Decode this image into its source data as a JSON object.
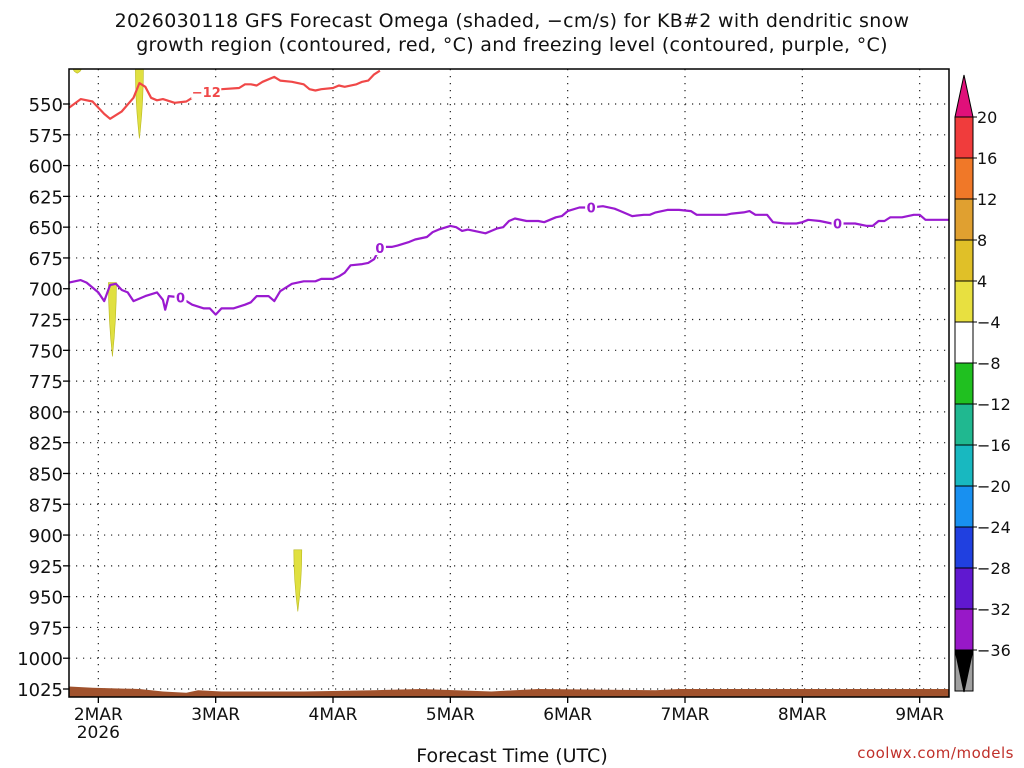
{
  "chart_data": {
    "type": "heatmap",
    "title_line1": "2026030118 GFS Forecast Omega (shaded, −cm/s) for KB#2 with dendritic snow",
    "title_line2": "growth region (contoured, red, °C) and freezing level (contoured, purple, °C)",
    "xlabel": "Forecast Time (UTC)",
    "credit": "coolwx.com/models",
    "x_range_days": [
      0,
      7.5
    ],
    "x_ticks": [
      {
        "day": 0.25,
        "label": "2MAR",
        "sub": "2026"
      },
      {
        "day": 1.25,
        "label": "3MAR"
      },
      {
        "day": 2.25,
        "label": "4MAR"
      },
      {
        "day": 3.25,
        "label": "5MAR"
      },
      {
        "day": 4.25,
        "label": "6MAR"
      },
      {
        "day": 5.25,
        "label": "7MAR"
      },
      {
        "day": 6.25,
        "label": "8MAR"
      },
      {
        "day": 7.25,
        "label": "9MAR"
      }
    ],
    "y_range_hpa": [
      520,
      1030
    ],
    "y_ticks": [
      550,
      575,
      600,
      625,
      650,
      675,
      700,
      725,
      750,
      775,
      800,
      825,
      850,
      875,
      900,
      925,
      950,
      975,
      1000,
      1025
    ],
    "colorbar": {
      "labels": [
        "20",
        "16",
        "12",
        "8",
        "4",
        "−4",
        "−8",
        "−12",
        "−16",
        "−20",
        "−24",
        "−28",
        "−32",
        "−36"
      ],
      "top_arrow_color": "#e0107a",
      "bottom_arrow_color": "#000000",
      "colors": [
        "#f03c3c",
        "#f07828",
        "#e0a030",
        "#e0c028",
        "#e8e040",
        "#ffffff",
        "#20c020",
        "#20b890",
        "#18b8c0",
        "#1890f0",
        "#2040e0",
        "#6018d0",
        "#9818c8",
        "#a0a0a0"
      ]
    },
    "series": [
      {
        "name": "dendritic snow growth region (-12 °C)",
        "color": "#f04848",
        "label": "−12",
        "label_at_day": 1.17,
        "points": [
          [
            0.0,
            553
          ],
          [
            0.1,
            546
          ],
          [
            0.2,
            548
          ],
          [
            0.3,
            558
          ],
          [
            0.35,
            562
          ],
          [
            0.45,
            556
          ],
          [
            0.55,
            545
          ],
          [
            0.6,
            533
          ],
          [
            0.65,
            536
          ],
          [
            0.7,
            545
          ],
          [
            0.75,
            547
          ],
          [
            0.8,
            546
          ],
          [
            0.9,
            549
          ],
          [
            1.0,
            548
          ],
          [
            1.05,
            545
          ],
          [
            1.15,
            541
          ],
          [
            1.2,
            539
          ],
          [
            1.3,
            538
          ],
          [
            1.45,
            537
          ],
          [
            1.5,
            534
          ],
          [
            1.55,
            534
          ],
          [
            1.6,
            535
          ],
          [
            1.65,
            532
          ],
          [
            1.75,
            528
          ],
          [
            1.8,
            531
          ],
          [
            1.9,
            532
          ],
          [
            2.0,
            534
          ],
          [
            2.05,
            538
          ],
          [
            2.1,
            539
          ],
          [
            2.15,
            538
          ],
          [
            2.25,
            537
          ],
          [
            2.3,
            535
          ],
          [
            2.35,
            536
          ],
          [
            2.45,
            534
          ],
          [
            2.5,
            532
          ],
          [
            2.55,
            531
          ],
          [
            2.6,
            526
          ],
          [
            2.65,
            523
          ]
        ]
      },
      {
        "name": "freezing level (0 °C)",
        "color": "#9a1ad0",
        "label": "0",
        "label_at_days": [
          0.95,
          2.65,
          4.45,
          6.55
        ],
        "points": [
          [
            0.0,
            695
          ],
          [
            0.1,
            693
          ],
          [
            0.15,
            695
          ],
          [
            0.25,
            703
          ],
          [
            0.3,
            710
          ],
          [
            0.35,
            697
          ],
          [
            0.4,
            696
          ],
          [
            0.45,
            701
          ],
          [
            0.5,
            703
          ],
          [
            0.55,
            710
          ],
          [
            0.65,
            706
          ],
          [
            0.75,
            703
          ],
          [
            0.8,
            709
          ],
          [
            0.82,
            717
          ],
          [
            0.85,
            706
          ],
          [
            0.95,
            707
          ],
          [
            1.05,
            713
          ],
          [
            1.15,
            716
          ],
          [
            1.2,
            716
          ],
          [
            1.25,
            721
          ],
          [
            1.3,
            716
          ],
          [
            1.4,
            716
          ],
          [
            1.5,
            713
          ],
          [
            1.55,
            711
          ],
          [
            1.6,
            706
          ],
          [
            1.7,
            706
          ],
          [
            1.75,
            710
          ],
          [
            1.8,
            702
          ],
          [
            1.9,
            696
          ],
          [
            2.0,
            694
          ],
          [
            2.1,
            694
          ],
          [
            2.15,
            692
          ],
          [
            2.25,
            692
          ],
          [
            2.3,
            690
          ],
          [
            2.35,
            687
          ],
          [
            2.4,
            681
          ],
          [
            2.5,
            680
          ],
          [
            2.55,
            679
          ],
          [
            2.6,
            676
          ],
          [
            2.65,
            667
          ],
          [
            2.7,
            666
          ],
          [
            2.75,
            666
          ],
          [
            2.8,
            665
          ],
          [
            2.9,
            662
          ],
          [
            2.95,
            660
          ],
          [
            3.05,
            658
          ],
          [
            3.1,
            654
          ],
          [
            3.15,
            652
          ],
          [
            3.25,
            649
          ],
          [
            3.3,
            650
          ],
          [
            3.35,
            653
          ],
          [
            3.4,
            652
          ],
          [
            3.5,
            654
          ],
          [
            3.55,
            655
          ],
          [
            3.6,
            653
          ],
          [
            3.65,
            651
          ],
          [
            3.7,
            650
          ],
          [
            3.75,
            645
          ],
          [
            3.8,
            643
          ],
          [
            3.9,
            645
          ],
          [
            4.0,
            645
          ],
          [
            4.05,
            646
          ],
          [
            4.15,
            642
          ],
          [
            4.2,
            641
          ],
          [
            4.25,
            637
          ],
          [
            4.35,
            634
          ],
          [
            4.45,
            634
          ],
          [
            4.55,
            633
          ],
          [
            4.65,
            635
          ],
          [
            4.7,
            637
          ],
          [
            4.8,
            641
          ],
          [
            4.9,
            640
          ],
          [
            4.95,
            640
          ],
          [
            5.0,
            638
          ],
          [
            5.1,
            636
          ],
          [
            5.2,
            636
          ],
          [
            5.3,
            637
          ],
          [
            5.35,
            640
          ],
          [
            5.45,
            640
          ],
          [
            5.55,
            640
          ],
          [
            5.6,
            640
          ],
          [
            5.65,
            639
          ],
          [
            5.75,
            638
          ],
          [
            5.8,
            637
          ],
          [
            5.85,
            640
          ],
          [
            5.95,
            640
          ],
          [
            6.0,
            646
          ],
          [
            6.1,
            647
          ],
          [
            6.2,
            647
          ],
          [
            6.25,
            646
          ],
          [
            6.3,
            644
          ],
          [
            6.4,
            645
          ],
          [
            6.5,
            647
          ],
          [
            6.6,
            647
          ],
          [
            6.7,
            647
          ],
          [
            6.8,
            649
          ],
          [
            6.85,
            649
          ],
          [
            6.9,
            645
          ],
          [
            6.95,
            645
          ],
          [
            7.0,
            642
          ],
          [
            7.1,
            642
          ],
          [
            7.2,
            640
          ],
          [
            7.25,
            640
          ],
          [
            7.3,
            644
          ],
          [
            7.4,
            644
          ],
          [
            7.5,
            644
          ]
        ]
      }
    ],
    "omega_shading": [
      {
        "value": 4,
        "color": "#e0e040",
        "day": 0.07,
        "p_top": 520,
        "p_bottom": 525
      },
      {
        "value": 4,
        "color": "#e0e040",
        "day": 0.6,
        "p_top": 520,
        "p_bottom": 578
      },
      {
        "value": 4,
        "color": "#e0e040",
        "day": 0.37,
        "p_top": 695,
        "p_bottom": 755
      },
      {
        "value": 4,
        "color": "#e0e040",
        "day": 1.95,
        "p_top": 912,
        "p_bottom": 962
      }
    ],
    "terrain_color": "#a0522d",
    "terrain_top_hpa": [
      [
        0.0,
        1023
      ],
      [
        0.2,
        1024
      ],
      [
        0.6,
        1025
      ],
      [
        0.8,
        1027
      ],
      [
        1.0,
        1028
      ],
      [
        1.1,
        1026
      ],
      [
        1.3,
        1027
      ],
      [
        2.0,
        1027
      ],
      [
        2.6,
        1026
      ],
      [
        3.0,
        1025
      ],
      [
        3.6,
        1027
      ],
      [
        4.0,
        1025
      ],
      [
        5.0,
        1026
      ],
      [
        5.2,
        1025
      ],
      [
        6.0,
        1025
      ],
      [
        7.5,
        1025
      ]
    ]
  }
}
